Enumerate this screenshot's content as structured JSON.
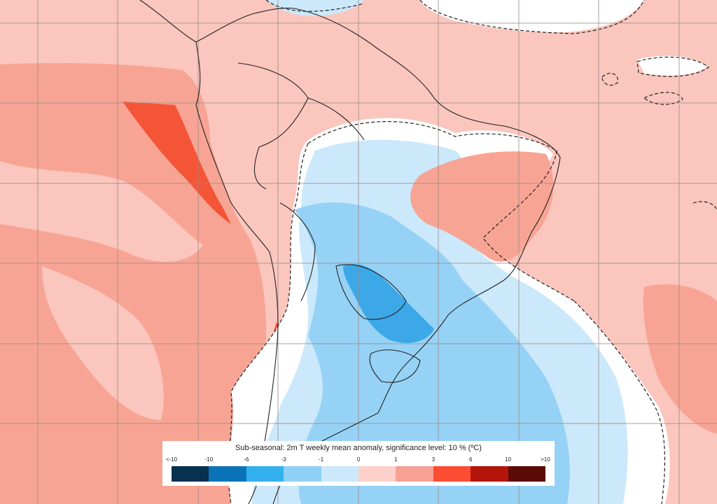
{
  "legend": {
    "title": "Sub-seasonal: 2m T weekly mean anomaly, significance level: 10 % (ºC)",
    "ticks": [
      "<-10",
      "-10",
      "-6",
      "-3",
      "-1",
      "0",
      "1",
      "3",
      "6",
      "10",
      ">10"
    ],
    "colors": [
      "#08304f",
      "#0b74b8",
      "#33b1ee",
      "#8fd0f4",
      "#cbe9fa",
      "#fdd0ca",
      "#f7a194",
      "#fb4d33",
      "#b3150a",
      "#5c0a05"
    ]
  },
  "anomaly_colors": {
    "warm_light": "#fac6bd",
    "warm_medium": "#f8a494",
    "warm_strong": "#f45537",
    "neutral": "#ffffff",
    "cool_light": "#cbe9fa",
    "cool_medium": "#96d2f5",
    "cool_strong": "#3ca8e8"
  }
}
